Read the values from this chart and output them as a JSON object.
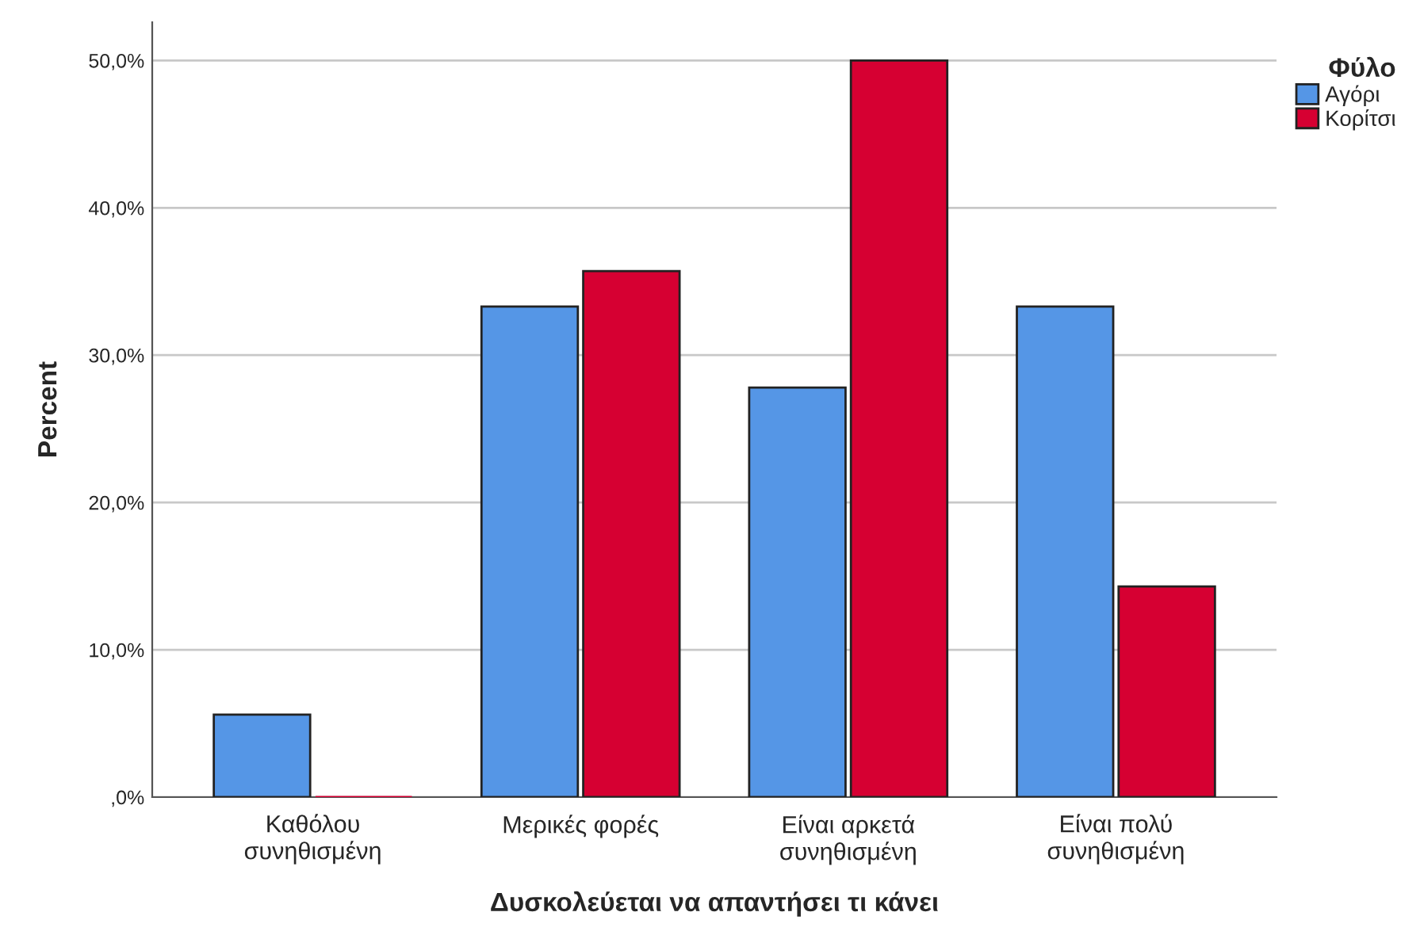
{
  "chart_data": {
    "type": "bar",
    "xlabel": "Δυσκολεύεται να απαντήσει τι κάνει",
    "ylabel": "Percent",
    "legend_title": "Φύλο",
    "categories": [
      "Καθόλου\nσυνηθισμένη",
      "Μερικές φορές",
      "Είναι αρκετά\nσυνηθισμένη",
      "Είναι πολύ\nσυνηθισμένη"
    ],
    "series": [
      {
        "name": "Αγόρι",
        "color": "#5596e6",
        "values": [
          5.6,
          33.3,
          27.8,
          33.3
        ]
      },
      {
        "name": "Κορίτσι",
        "color": "#d60032",
        "values": [
          0,
          35.7,
          50.0,
          14.3
        ]
      }
    ],
    "ylim": [
      0,
      52.6
    ],
    "yticks": [
      {
        "value": 0,
        "label": ",0%"
      },
      {
        "value": 10,
        "label": "10,0%"
      },
      {
        "value": 20,
        "label": "20,0%"
      },
      {
        "value": 30,
        "label": "30,0%"
      },
      {
        "value": 40,
        "label": "40,0%"
      },
      {
        "value": 50,
        "label": "50,0%"
      }
    ],
    "grid": "y",
    "legend": "top right"
  }
}
